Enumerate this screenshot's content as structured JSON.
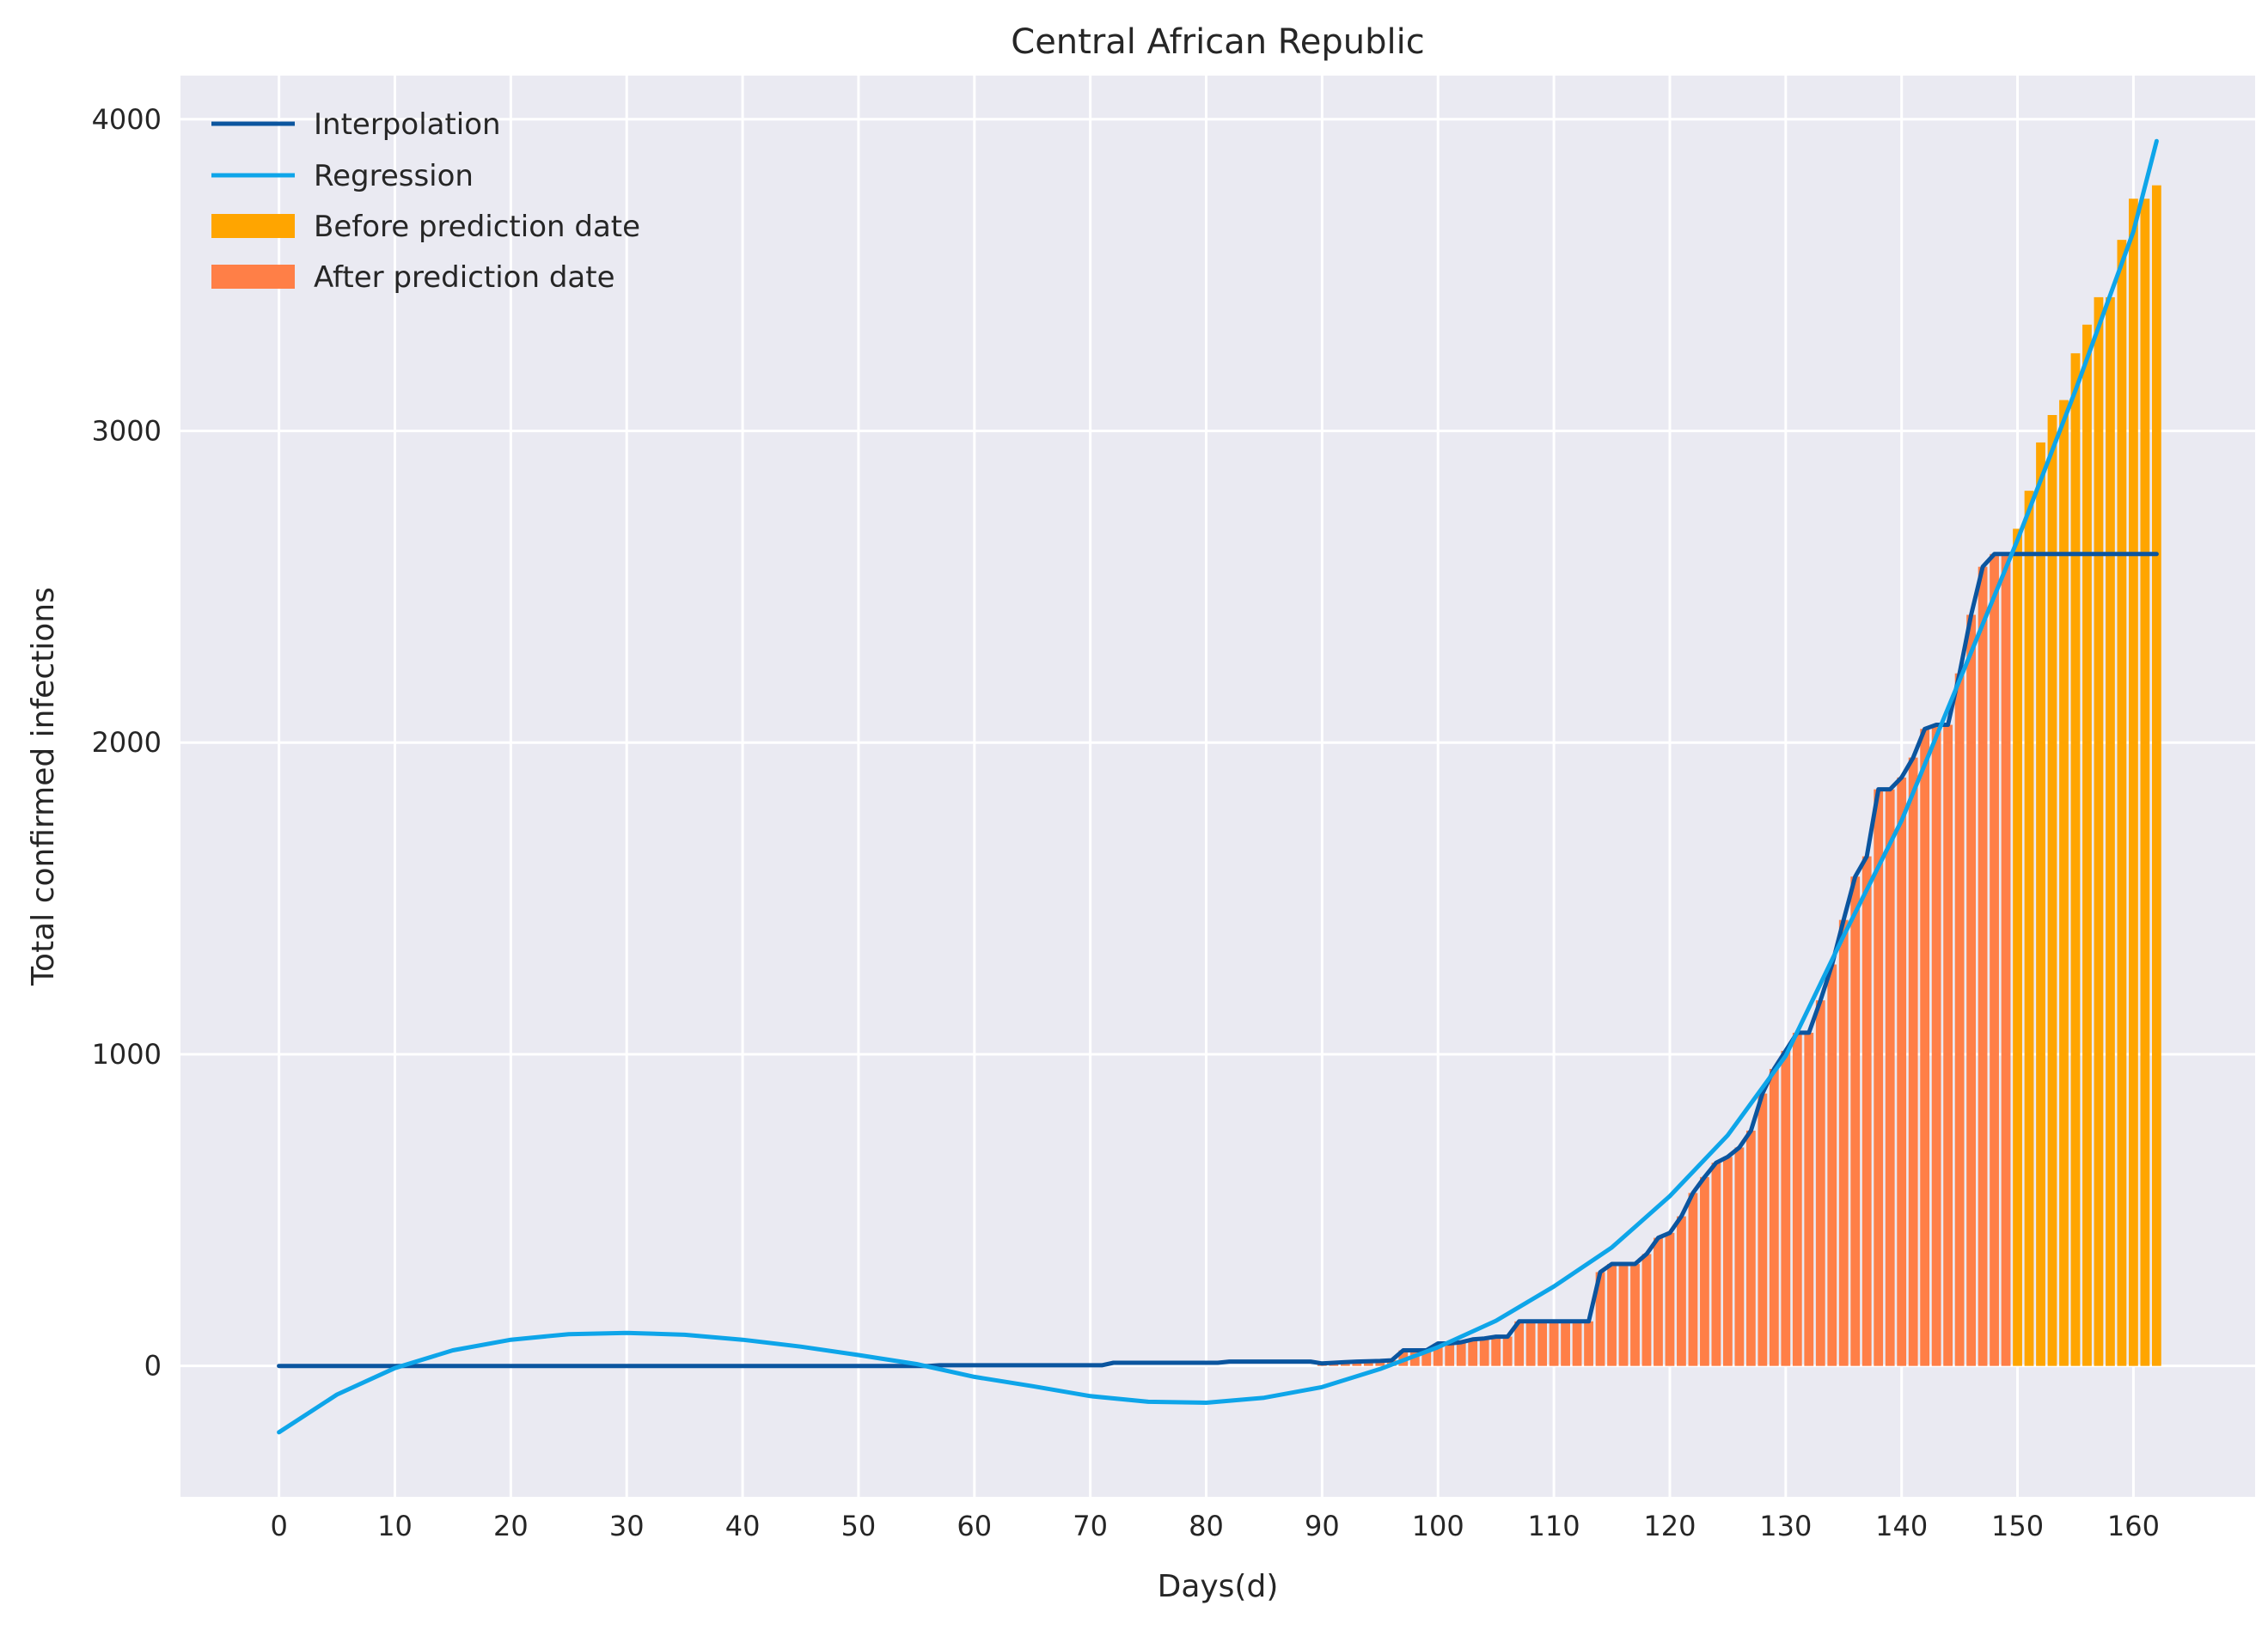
{
  "chart_data": {
    "type": "bar",
    "title": "Central African Republic",
    "xlabel": "Days(d)",
    "ylabel": "Total confirmed infections",
    "xlim": [
      -8.5,
      170.5
    ],
    "ylim": [
      -420,
      4140
    ],
    "xticks": [
      0,
      10,
      20,
      30,
      40,
      50,
      60,
      70,
      80,
      90,
      100,
      110,
      120,
      130,
      140,
      150,
      160
    ],
    "yticks": [
      0,
      1000,
      2000,
      3000,
      4000
    ],
    "grid": true,
    "legend_position": "top-left",
    "colors": {
      "background": "#eaeaf2",
      "grid": "#ffffff",
      "interpolation": "#0b559f",
      "regression": "#0ea5e9",
      "before": "#ffa500",
      "after": "#ff7f47"
    },
    "legend": [
      "Interpolation",
      "Regression",
      "Before prediction date",
      "After prediction date"
    ],
    "series": [
      {
        "name": "After prediction date",
        "kind": "bar",
        "points": [
          [
            90,
            8
          ],
          [
            91,
            10
          ],
          [
            92,
            12
          ],
          [
            93,
            14
          ],
          [
            94,
            15
          ],
          [
            95,
            16
          ],
          [
            96,
            18
          ],
          [
            97,
            50
          ],
          [
            98,
            50
          ],
          [
            99,
            50
          ],
          [
            100,
            72
          ],
          [
            101,
            72
          ],
          [
            102,
            76
          ],
          [
            103,
            85
          ],
          [
            104,
            88
          ],
          [
            105,
            94
          ],
          [
            106,
            94
          ],
          [
            107,
            143
          ],
          [
            108,
            143
          ],
          [
            109,
            143
          ],
          [
            110,
            143
          ],
          [
            111,
            143
          ],
          [
            112,
            143
          ],
          [
            113,
            143
          ],
          [
            114,
            301
          ],
          [
            115,
            327
          ],
          [
            116,
            327
          ],
          [
            117,
            327
          ],
          [
            118,
            359
          ],
          [
            119,
            411
          ],
          [
            120,
            427
          ],
          [
            121,
            480
          ],
          [
            122,
            555
          ],
          [
            123,
            606
          ],
          [
            124,
            652
          ],
          [
            125,
            671
          ],
          [
            126,
            701
          ],
          [
            127,
            755
          ],
          [
            128,
            874
          ],
          [
            129,
            953
          ],
          [
            130,
            1011
          ],
          [
            131,
            1069
          ],
          [
            132,
            1069
          ],
          [
            133,
            1173
          ],
          [
            134,
            1288
          ],
          [
            135,
            1431
          ],
          [
            136,
            1570
          ],
          [
            137,
            1635
          ],
          [
            138,
            1850
          ],
          [
            139,
            1850
          ],
          [
            140,
            1888
          ],
          [
            141,
            1952
          ],
          [
            142,
            2044
          ],
          [
            143,
            2057
          ],
          [
            144,
            2057
          ],
          [
            145,
            2222
          ],
          [
            146,
            2410
          ],
          [
            147,
            2564
          ],
          [
            148,
            2605
          ],
          [
            149,
            2605
          ]
        ]
      },
      {
        "name": "Before prediction date",
        "kind": "bar",
        "points": [
          [
            150,
            2686
          ],
          [
            151,
            2808
          ],
          [
            152,
            2963
          ],
          [
            153,
            3051
          ],
          [
            154,
            3099
          ],
          [
            155,
            3249
          ],
          [
            156,
            3341
          ],
          [
            157,
            3429
          ],
          [
            158,
            3429
          ],
          [
            159,
            3613
          ],
          [
            160,
            3745
          ],
          [
            161,
            3745
          ],
          [
            162,
            3788
          ]
        ]
      },
      {
        "name": "Interpolation",
        "kind": "line",
        "points": [
          [
            0,
            0
          ],
          [
            56,
            0
          ],
          [
            57,
            2
          ],
          [
            71,
            2
          ],
          [
            72,
            10
          ],
          [
            81,
            10
          ],
          [
            82,
            14
          ],
          [
            89,
            14
          ],
          [
            90,
            8
          ],
          [
            91,
            10
          ],
          [
            92,
            12
          ],
          [
            93,
            14
          ],
          [
            94,
            15
          ],
          [
            95,
            16
          ],
          [
            96,
            18
          ],
          [
            97,
            50
          ],
          [
            98,
            50
          ],
          [
            99,
            50
          ],
          [
            100,
            72
          ],
          [
            101,
            72
          ],
          [
            102,
            76
          ],
          [
            103,
            85
          ],
          [
            104,
            88
          ],
          [
            105,
            94
          ],
          [
            106,
            94
          ],
          [
            107,
            143
          ],
          [
            108,
            143
          ],
          [
            109,
            143
          ],
          [
            110,
            143
          ],
          [
            111,
            143
          ],
          [
            112,
            143
          ],
          [
            113,
            143
          ],
          [
            114,
            301
          ],
          [
            115,
            327
          ],
          [
            116,
            327
          ],
          [
            117,
            327
          ],
          [
            118,
            359
          ],
          [
            119,
            411
          ],
          [
            120,
            427
          ],
          [
            121,
            480
          ],
          [
            122,
            555
          ],
          [
            123,
            606
          ],
          [
            124,
            652
          ],
          [
            125,
            671
          ],
          [
            126,
            701
          ],
          [
            127,
            755
          ],
          [
            128,
            874
          ],
          [
            129,
            953
          ],
          [
            130,
            1011
          ],
          [
            131,
            1069
          ],
          [
            132,
            1069
          ],
          [
            133,
            1173
          ],
          [
            134,
            1288
          ],
          [
            135,
            1431
          ],
          [
            136,
            1570
          ],
          [
            137,
            1635
          ],
          [
            138,
            1850
          ],
          [
            139,
            1850
          ],
          [
            140,
            1888
          ],
          [
            141,
            1952
          ],
          [
            142,
            2044
          ],
          [
            143,
            2057
          ],
          [
            144,
            2057
          ],
          [
            145,
            2222
          ],
          [
            146,
            2410
          ],
          [
            147,
            2564
          ],
          [
            148,
            2605
          ],
          [
            162,
            2605
          ]
        ]
      },
      {
        "name": "Regression",
        "kind": "line",
        "points": [
          [
            0,
            -213
          ],
          [
            5,
            -92
          ],
          [
            10,
            -7
          ],
          [
            15,
            50
          ],
          [
            20,
            84
          ],
          [
            25,
            102
          ],
          [
            30,
            106
          ],
          [
            35,
            100
          ],
          [
            40,
            84
          ],
          [
            45,
            62
          ],
          [
            50,
            35
          ],
          [
            55,
            6
          ],
          [
            60,
            -35
          ],
          [
            65,
            -65
          ],
          [
            70,
            -97
          ],
          [
            75,
            -115
          ],
          [
            80,
            -118
          ],
          [
            85,
            -102
          ],
          [
            90,
            -68
          ],
          [
            95,
            -10
          ],
          [
            100,
            60
          ],
          [
            105,
            145
          ],
          [
            110,
            255
          ],
          [
            115,
            380
          ],
          [
            120,
            545
          ],
          [
            125,
            740
          ],
          [
            130,
            995
          ],
          [
            135,
            1380
          ],
          [
            140,
            1750
          ],
          [
            145,
            2200
          ],
          [
            150,
            2650
          ],
          [
            155,
            3130
          ],
          [
            160,
            3640
          ],
          [
            162,
            3930
          ]
        ]
      }
    ]
  }
}
